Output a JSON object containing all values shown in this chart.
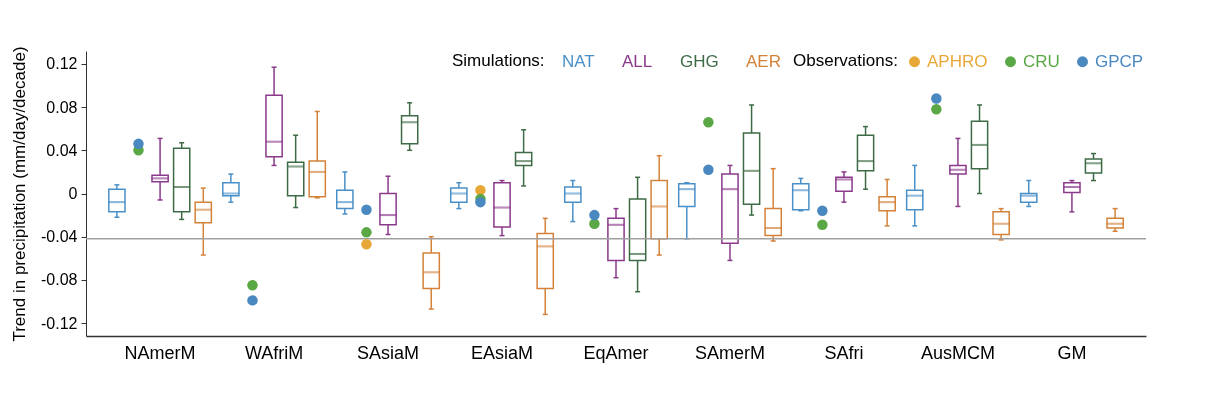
{
  "chart_data": {
    "type": "box",
    "ylabel": "Trend in precipitation (mm/day/decade)",
    "legend_title": [
      "Simulations:",
      "Observations:"
    ],
    "legend": "top right",
    "marker": "circle",
    "categories": [
      "NAmerM",
      "WAfriM",
      "SAsiaM",
      "EAsiaM",
      "EqAmer",
      "SAmerM",
      "SAfri",
      "AusMCM",
      "GM"
    ],
    "ylim": [
      -0.132,
      0.132
    ],
    "yticks": [
      -0.12,
      -0.08,
      -0.04,
      0,
      0.04,
      0.08,
      0.12
    ],
    "ref_lines": [
      {
        "axis": "y",
        "value": -0.042,
        "color": "#a0a0a0"
      }
    ],
    "series": [
      {
        "name": "NAT",
        "color": "#4a90c8",
        "boxes": [
          {
            "low": -0.022,
            "q1": -0.017,
            "median": -0.008,
            "q3": 0.004,
            "high": 0.008
          },
          {
            "low": -0.008,
            "q1": -0.002,
            "median": 0.0,
            "q3": 0.01,
            "high": 0.018
          },
          {
            "low": -0.019,
            "q1": -0.014,
            "median": -0.008,
            "q3": 0.003,
            "high": 0.02
          },
          {
            "low": -0.014,
            "q1": -0.008,
            "median": 0.0,
            "q3": 0.005,
            "high": 0.01
          },
          {
            "low": -0.026,
            "q1": -0.008,
            "median": 0.0,
            "q3": 0.006,
            "high": 0.012
          },
          {
            "low": -0.042,
            "q1": -0.012,
            "median": 0.004,
            "q3": 0.009,
            "high": 0.01
          },
          {
            "low": -0.016,
            "q1": -0.015,
            "median": 0.003,
            "q3": 0.009,
            "high": 0.014
          },
          {
            "low": -0.03,
            "q1": -0.015,
            "median": -0.002,
            "q3": 0.003,
            "high": 0.026
          },
          {
            "low": -0.012,
            "q1": -0.008,
            "median": -0.002,
            "q3": 0.0,
            "high": 0.012
          }
        ]
      },
      {
        "name": "ALL",
        "color": "#8b3a8b",
        "boxes": [
          {
            "low": -0.006,
            "q1": 0.011,
            "median": 0.014,
            "q3": 0.017,
            "high": 0.051
          },
          {
            "low": 0.026,
            "q1": 0.034,
            "median": 0.048,
            "q3": 0.091,
            "high": 0.117
          },
          {
            "low": -0.038,
            "q1": -0.029,
            "median": -0.02,
            "q3": 0.0,
            "high": 0.016
          },
          {
            "low": -0.039,
            "q1": -0.031,
            "median": -0.013,
            "q3": 0.01,
            "high": 0.012
          },
          {
            "low": -0.078,
            "q1": -0.062,
            "median": -0.029,
            "q3": -0.023,
            "high": -0.014
          },
          {
            "low": -0.062,
            "q1": -0.046,
            "median": 0.004,
            "q3": 0.018,
            "high": 0.026
          },
          {
            "low": -0.008,
            "q1": 0.002,
            "median": 0.013,
            "q3": 0.015,
            "high": 0.02
          },
          {
            "low": -0.012,
            "q1": 0.018,
            "median": 0.022,
            "q3": 0.026,
            "high": 0.051
          },
          {
            "low": -0.017,
            "q1": 0.001,
            "median": 0.006,
            "q3": 0.01,
            "high": 0.012
          }
        ]
      },
      {
        "name": "GHG",
        "color": "#3d6b45",
        "boxes": [
          {
            "low": -0.024,
            "q1": -0.017,
            "median": 0.006,
            "q3": 0.042,
            "high": 0.047
          },
          {
            "low": -0.013,
            "q1": -0.002,
            "median": 0.025,
            "q3": 0.029,
            "high": 0.054
          },
          {
            "low": 0.04,
            "q1": 0.046,
            "median": 0.066,
            "q3": 0.072,
            "high": 0.084
          },
          {
            "low": 0.007,
            "q1": 0.026,
            "median": 0.03,
            "q3": 0.038,
            "high": 0.059
          },
          {
            "low": -0.091,
            "q1": -0.062,
            "median": -0.056,
            "q3": -0.005,
            "high": 0.015
          },
          {
            "low": -0.02,
            "q1": -0.01,
            "median": 0.021,
            "q3": 0.056,
            "high": 0.082
          },
          {
            "low": 0.004,
            "q1": 0.021,
            "median": 0.03,
            "q3": 0.054,
            "high": 0.062
          },
          {
            "low": 0.0,
            "q1": 0.023,
            "median": 0.045,
            "q3": 0.067,
            "high": 0.082
          },
          {
            "low": 0.012,
            "q1": 0.019,
            "median": 0.028,
            "q3": 0.032,
            "high": 0.037
          }
        ]
      },
      {
        "name": "AER",
        "color": "#d4823a",
        "boxes": [
          {
            "low": -0.057,
            "q1": -0.027,
            "median": -0.015,
            "q3": -0.008,
            "high": 0.005
          },
          {
            "low": -0.004,
            "q1": -0.003,
            "median": 0.02,
            "q3": 0.03,
            "high": 0.076
          },
          {
            "low": -0.107,
            "q1": -0.088,
            "median": -0.073,
            "q3": -0.055,
            "high": -0.04
          },
          {
            "low": -0.112,
            "q1": -0.088,
            "median": -0.049,
            "q3": -0.037,
            "high": -0.023
          },
          {
            "low": -0.057,
            "q1": -0.042,
            "median": -0.012,
            "q3": 0.012,
            "high": 0.035
          },
          {
            "low": -0.044,
            "q1": -0.039,
            "median": -0.032,
            "q3": -0.014,
            "high": 0.023
          },
          {
            "low": -0.03,
            "q1": -0.016,
            "median": -0.008,
            "q3": -0.003,
            "high": 0.013
          },
          {
            "low": -0.043,
            "q1": -0.038,
            "median": -0.028,
            "q3": -0.017,
            "high": -0.014
          },
          {
            "low": -0.035,
            "q1": -0.032,
            "median": -0.028,
            "q3": -0.023,
            "high": -0.014
          }
        ]
      },
      {
        "name": "APHRO",
        "type": "scatter",
        "color": "#e8a838",
        "x": [
          "SAsiaM",
          "EAsiaM"
        ],
        "values": [
          -0.047,
          0.003
        ]
      },
      {
        "name": "CRU",
        "type": "scatter",
        "color": "#5aa845",
        "x": [
          "NAmerM",
          "WAfriM",
          "SAsiaM",
          "EAsiaM",
          "EqAmer",
          "SAmerM",
          "SAfri",
          "AusMCM"
        ],
        "values": [
          0.04,
          -0.085,
          -0.036,
          -0.005,
          -0.028,
          0.066,
          -0.029,
          0.078
        ]
      },
      {
        "name": "GPCP",
        "type": "scatter",
        "color": "#4a88c0",
        "x": [
          "NAmerM",
          "WAfriM",
          "SAsiaM",
          "EAsiaM",
          "EqAmer",
          "SAmerM",
          "SAfri",
          "AusMCM"
        ],
        "values": [
          0.046,
          -0.099,
          -0.015,
          -0.008,
          -0.02,
          0.022,
          -0.016,
          0.088
        ]
      }
    ]
  }
}
